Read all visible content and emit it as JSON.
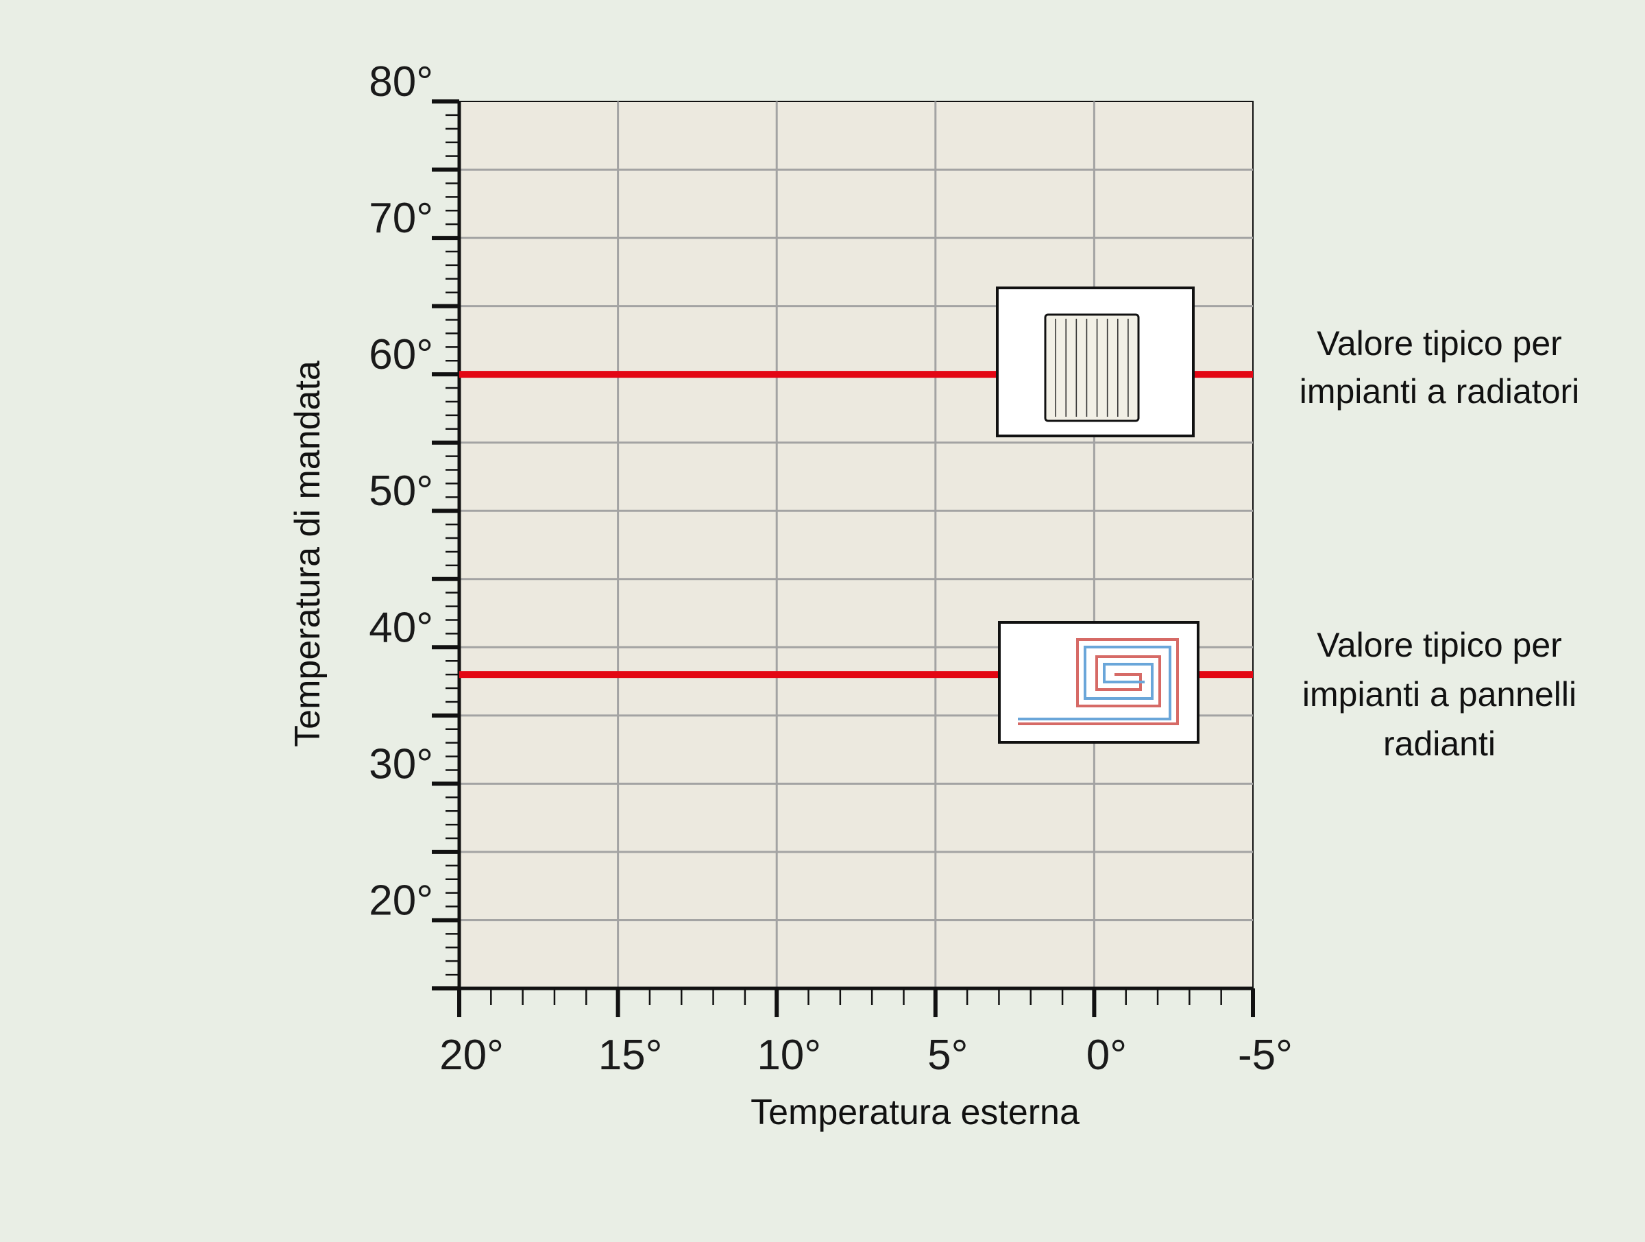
{
  "chart_data": {
    "type": "line",
    "xlabel": "Temperatura esterna",
    "ylabel": "Temperatura di mandata",
    "xlim": [
      20,
      -5
    ],
    "ylim": [
      15,
      80
    ],
    "x_ticks": [
      20,
      15,
      10,
      5,
      0,
      -5
    ],
    "x_tick_labels": [
      "20°",
      "15°",
      "10°",
      "5°",
      "0°",
      "-5°"
    ],
    "y_ticks": [
      20,
      30,
      40,
      50,
      60,
      70,
      80
    ],
    "y_tick_labels": [
      "20°",
      "30°",
      "40°",
      "50°",
      "60°",
      "70°",
      "80°"
    ],
    "grid": true,
    "series": [
      {
        "x": [
          20,
          -5
        ],
        "values": [
          60,
          60
        ]
      },
      {
        "x": [
          20,
          -5
        ],
        "values": [
          38,
          38
        ]
      }
    ],
    "annotations": [
      {
        "lines": [
          "Valore tipico per",
          "impianti a radiatori"
        ],
        "series_index": 0,
        "icon": "radiator-icon"
      },
      {
        "lines": [
          "Valore tipico per",
          "impianti a pannelli",
          "radianti"
        ],
        "series_index": 1,
        "icon": "radiant-floor-icon"
      }
    ]
  },
  "colors": {
    "background": "#e9eee5",
    "plot_background": "#ece9df",
    "grid": "#a3a3a3",
    "axis": "#111111",
    "series_line": "#e30613",
    "radiator_fill": "#f2f0e6",
    "pipe_red": "#d66a66",
    "pipe_blue": "#6aa6d9"
  }
}
